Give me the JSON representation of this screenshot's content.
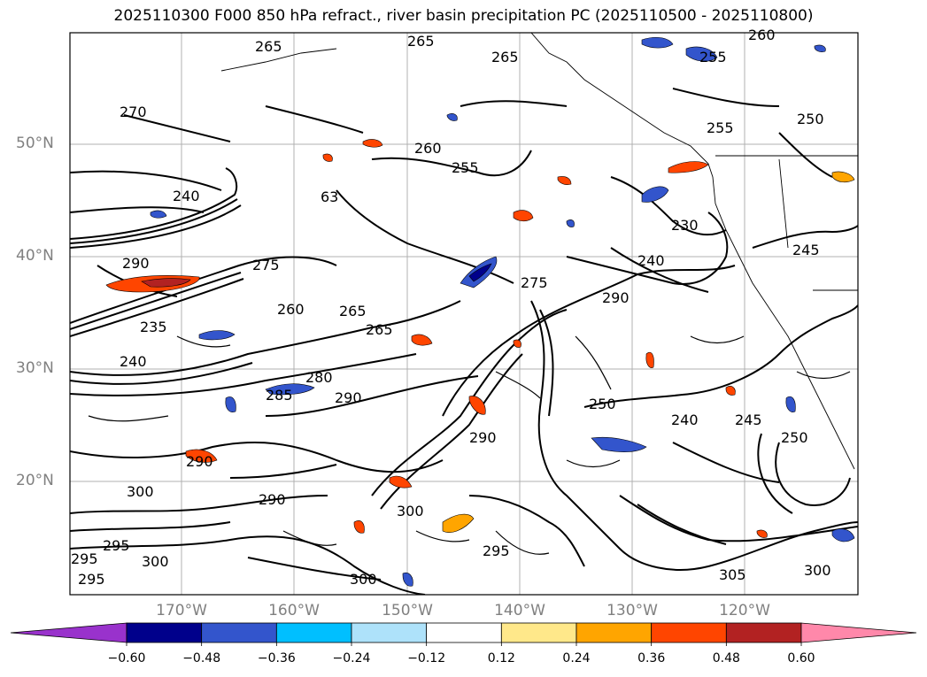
{
  "title": "2025110300 F000 850 hPa refract., river basin precipitation PC (2025110500 - 2025110800)",
  "lat_labels": [
    "50°N",
    "40°N",
    "30°N",
    "20°N"
  ],
  "lon_labels": [
    "170°W",
    "160°W",
    "150°W",
    "140°W",
    "130°W",
    "120°W"
  ],
  "contour_labels": [
    "265",
    "265",
    "265",
    "270",
    "255",
    "255",
    "260",
    "260",
    "255",
    "250",
    "240",
    "63",
    "230",
    "240",
    "275",
    "245",
    "290",
    "275",
    "235",
    "260",
    "265",
    "265",
    "240",
    "280",
    "285",
    "290",
    "250",
    "240",
    "245",
    "290",
    "290",
    "290",
    "250",
    "300",
    "300",
    "290",
    "295",
    "295",
    "295",
    "295",
    "300",
    "300",
    "305",
    "300"
  ],
  "colorbar": {
    "ticks": [
      "−0.60",
      "−0.48",
      "−0.36",
      "−0.24",
      "−0.12",
      "0.12",
      "0.24",
      "0.36",
      "0.48",
      "0.60"
    ],
    "colors": [
      "#9932CC",
      "#00008B",
      "#3355CC",
      "#00BFFF",
      "#AEE2FA",
      "#FFFFFF",
      "#FFE88A",
      "#FFA500",
      "#FF4500",
      "#B22222",
      "#FF88AA"
    ]
  }
}
